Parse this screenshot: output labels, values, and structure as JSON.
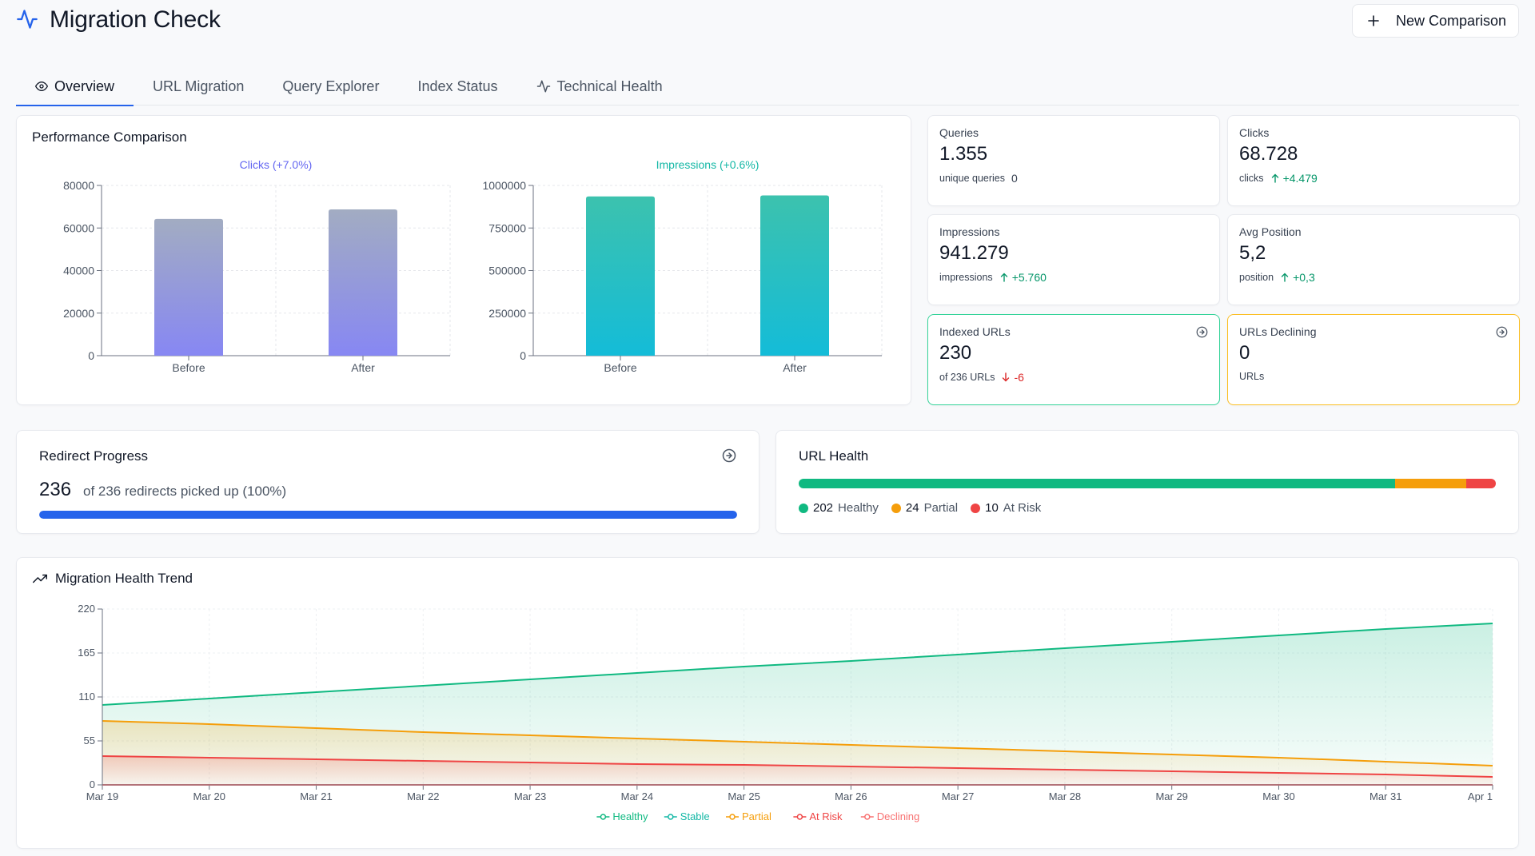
{
  "app": {
    "title": "Migration Check",
    "new_button": "New Comparison"
  },
  "tabs": [
    {
      "label": "Overview",
      "icon": "eye-icon",
      "active": true
    },
    {
      "label": "URL Migration"
    },
    {
      "label": "Query Explorer"
    },
    {
      "label": "Index Status"
    },
    {
      "label": "Technical Health",
      "icon": "activity-icon"
    }
  ],
  "performance": {
    "title": "Performance Comparison"
  },
  "stats": {
    "queries": {
      "label": "Queries",
      "value": "1.355",
      "sub": "unique queries",
      "delta": "0"
    },
    "clicks": {
      "label": "Clicks",
      "value": "68.728",
      "sub": "clicks",
      "delta": "+4.479"
    },
    "impressions": {
      "label": "Impressions",
      "value": "941.279",
      "sub": "impressions",
      "delta": "+5.760"
    },
    "position": {
      "label": "Avg Position",
      "value": "5,2",
      "sub": "position",
      "delta": "+0,3"
    },
    "indexed": {
      "label": "Indexed URLs",
      "value": "230",
      "sub": "of 236 URLs",
      "delta": "-6"
    },
    "declining": {
      "label": "URLs Declining",
      "value": "0",
      "sub": "URLs"
    }
  },
  "redirect": {
    "title": "Redirect Progress",
    "count": "236",
    "desc": "of 236 redirects picked up (100%)",
    "progress": 1.0
  },
  "url_health": {
    "title": "URL Health",
    "items": [
      {
        "count": "202",
        "label": "Healthy",
        "value": 202,
        "color": "#10b981"
      },
      {
        "count": "24",
        "label": "Partial",
        "value": 24,
        "color": "#f59e0b"
      },
      {
        "count": "10",
        "label": "At Risk",
        "value": 10,
        "color": "#ef4444"
      }
    ]
  },
  "trend": {
    "title": "Migration Health Trend"
  },
  "colors": {
    "accent": "#2563eb",
    "healthy": "#10b981",
    "stable": "#14b8a6",
    "partial": "#f59e0b",
    "at_risk": "#ef4444",
    "declining": "#f87171"
  },
  "chart_data": [
    {
      "type": "bar",
      "title": "Clicks (+7.0%)",
      "categories": [
        "Before",
        "After"
      ],
      "values": [
        64249,
        68728
      ],
      "ylim": [
        0,
        80000
      ],
      "yticks": [
        0,
        20000,
        40000,
        60000,
        80000
      ],
      "colors": [
        "#a4aec6",
        "#8b8df2"
      ],
      "title_color": "#6366f1",
      "grid": true
    },
    {
      "type": "bar",
      "title": "Impressions (+0.6%)",
      "categories": [
        "Before",
        "After"
      ],
      "values": [
        935519,
        941279
      ],
      "ylim": [
        0,
        1000000
      ],
      "yticks": [
        0,
        250000,
        500000,
        750000,
        1000000
      ],
      "colors": [
        "#3cc4b0",
        "#16bcd5"
      ],
      "title_color": "#14b8a6",
      "grid": true
    },
    {
      "type": "area",
      "x": [
        "Mar 19",
        "Mar 20",
        "Mar 21",
        "Mar 22",
        "Mar 23",
        "Mar 24",
        "Mar 25",
        "Mar 26",
        "Mar 27",
        "Mar 28",
        "Mar 29",
        "Mar 30",
        "Mar 31",
        "Apr 1"
      ],
      "series": [
        {
          "name": "Healthy",
          "color": "#10b981",
          "values": [
            100,
            108,
            116,
            124,
            132,
            140,
            148,
            155,
            163,
            171,
            179,
            187,
            195,
            202
          ]
        },
        {
          "name": "Stable",
          "color": "#14b8a6",
          "values": [
            0,
            0,
            0,
            0,
            0,
            0,
            0,
            0,
            0,
            0,
            0,
            0,
            0,
            0
          ]
        },
        {
          "name": "Partial",
          "color": "#f59e0b",
          "values": [
            80,
            76,
            71,
            66,
            62,
            58,
            54,
            50,
            46,
            42,
            38,
            34,
            29,
            24
          ]
        },
        {
          "name": "At Risk",
          "color": "#ef4444",
          "values": [
            36,
            34,
            32,
            30,
            28,
            26,
            25,
            23,
            21,
            19,
            17,
            15,
            13,
            10
          ]
        },
        {
          "name": "Declining",
          "color": "#f87171",
          "values": [
            0,
            0,
            0,
            0,
            0,
            0,
            0,
            0,
            0,
            0,
            0,
            0,
            0,
            0
          ]
        }
      ],
      "ylim": [
        0,
        220
      ],
      "yticks": [
        0,
        55,
        110,
        165,
        220
      ],
      "grid": true,
      "legend": "bottom"
    }
  ]
}
